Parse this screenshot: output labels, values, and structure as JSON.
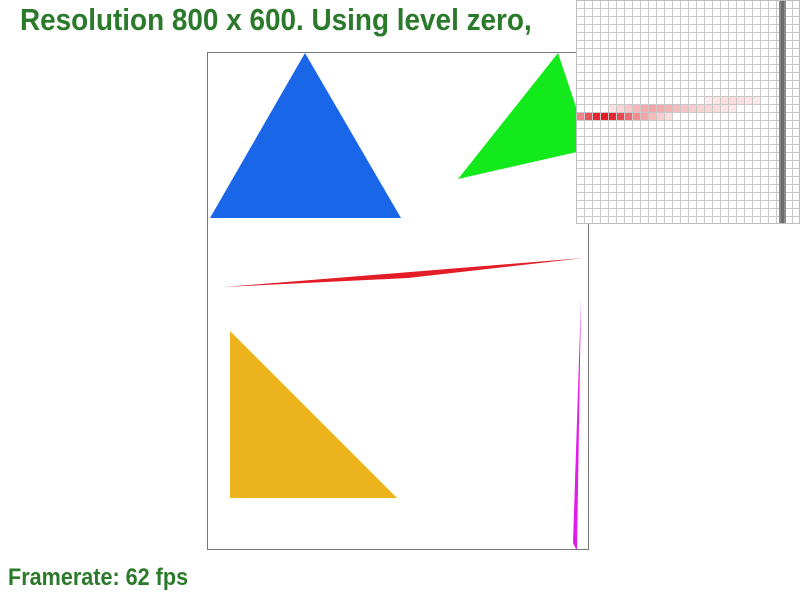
{
  "header": {
    "text": "Resolution 800 x 600. Using level zero,"
  },
  "footer": {
    "framerate_text": "Framerate: 62 fps"
  },
  "colors": {
    "label_green": "#2b7a2b",
    "triangle_blue": "#1a66e8",
    "triangle_green": "#13ea1c",
    "line_red": "#e31c26",
    "triangle_orange": "#ecb41c",
    "line_magenta": "#e21cea",
    "viewport_border": "#777777",
    "grid_line": "#c8c8c8"
  }
}
